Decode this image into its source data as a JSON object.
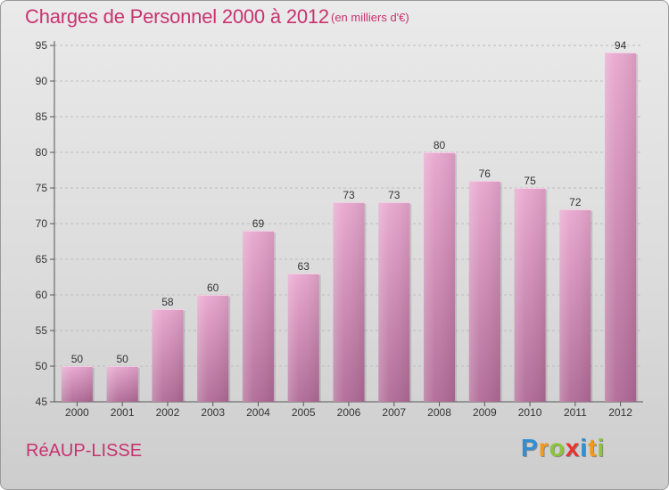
{
  "header": {
    "title": "Charges de Personnel 2000 à 2012",
    "subtitle": "(en milliers d'€)"
  },
  "footer": {
    "place": "RéAUP-LISSE",
    "brand_letters": [
      {
        "char": "P",
        "color": "#2f8fd6"
      },
      {
        "char": "r",
        "color": "#f29a1a"
      },
      {
        "char": "o",
        "color": "#8cc43a"
      },
      {
        "char": "x",
        "color": "#e8322e"
      },
      {
        "char": "i",
        "color": "#2f8fd6"
      },
      {
        "char": "t",
        "color": "#f29a1a"
      },
      {
        "char": "i",
        "color": "#8cc43a"
      }
    ]
  },
  "colors": {
    "title": "#c8336f",
    "bar_top": "#e8a6ce",
    "bar_bottom": "#b06a96",
    "grid": "#bdbdbd"
  },
  "chart_data": {
    "type": "bar",
    "title": "Charges de Personnel 2000 à 2012",
    "subtitle": "(en milliers d'€)",
    "categories": [
      "2000",
      "2001",
      "2002",
      "2003",
      "2004",
      "2005",
      "2006",
      "2007",
      "2008",
      "2009",
      "2010",
      "2011",
      "2012"
    ],
    "values": [
      50,
      50,
      58,
      60,
      69,
      63,
      73,
      73,
      80,
      76,
      75,
      72,
      94
    ],
    "yticks": [
      45,
      50,
      55,
      60,
      65,
      70,
      75,
      80,
      85,
      90,
      95
    ],
    "ylim": [
      45,
      95
    ],
    "grid": true,
    "xlabel": "",
    "ylabel": ""
  }
}
